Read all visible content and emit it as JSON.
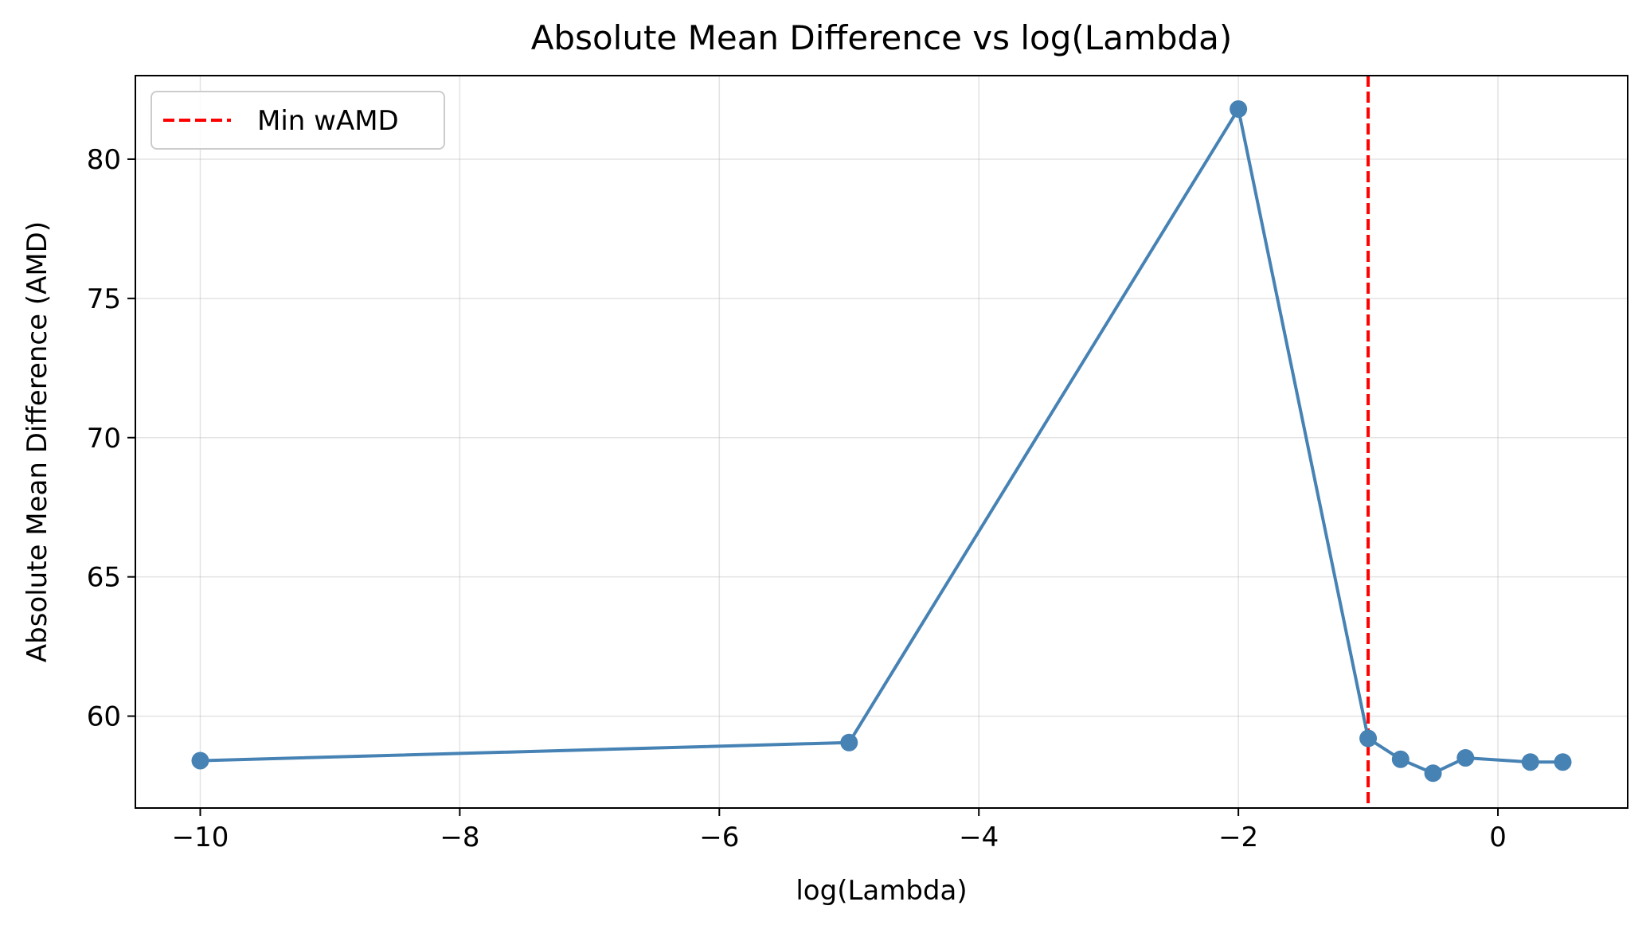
{
  "chart_data": {
    "type": "line",
    "title": "Absolute Mean Difference vs log(Lambda)",
    "xlabel": "log(Lambda)",
    "ylabel": "Absolute Mean Difference (AMD)",
    "xlim": [
      -10.5,
      1.0
    ],
    "ylim": [
      56.7,
      83.0
    ],
    "xticks": [
      -10,
      -8,
      -6,
      -4,
      -2,
      0
    ],
    "xtick_labels": [
      "−10",
      "−8",
      "−6",
      "−4",
      "−2",
      "0"
    ],
    "yticks": [
      60,
      65,
      70,
      75,
      80
    ],
    "ytick_labels": [
      "60",
      "65",
      "70",
      "75",
      "80"
    ],
    "grid": true,
    "legend_position": "upper-left",
    "series": [
      {
        "x": [
          -10,
          -5,
          -2,
          -1,
          -0.75,
          -0.5,
          -0.25,
          0.25,
          0.5
        ],
        "y": [
          58.4,
          59.05,
          81.8,
          59.2,
          58.45,
          57.95,
          58.5,
          58.35,
          58.35
        ],
        "color": "#4682b4",
        "marker": "circle"
      }
    ],
    "reference_lines": [
      {
        "orientation": "vertical",
        "x": -1,
        "label": "Min wAMD",
        "color": "#ff0000",
        "style": "dashed"
      }
    ]
  }
}
